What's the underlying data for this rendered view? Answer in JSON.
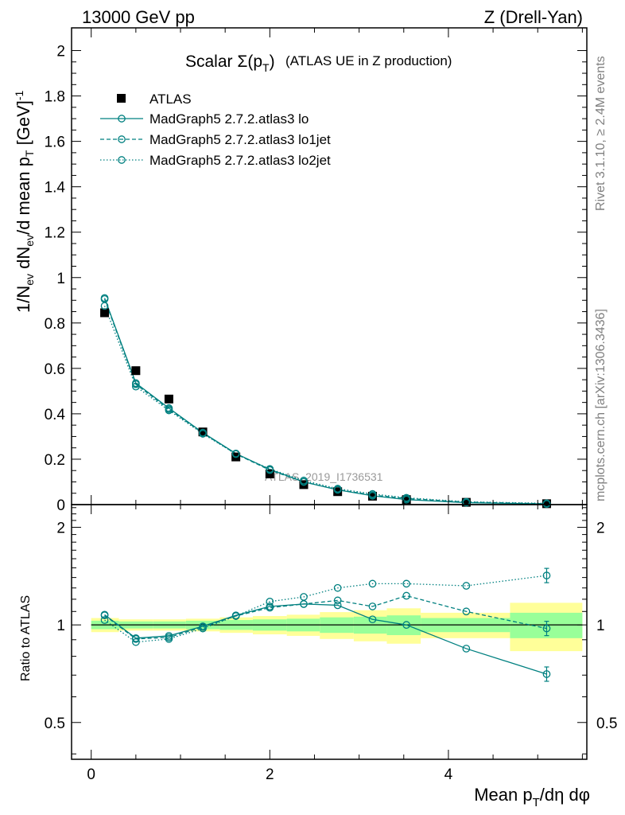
{
  "header": {
    "left": "13000 GeV pp",
    "right": "Z (Drell-Yan)"
  },
  "side": {
    "rivet": "Rivet 3.1.10, ≥ 2.4M events",
    "mcplots": "mcplots.cern.ch [arXiv:1306.3436]"
  },
  "colors": {
    "mc": "#008080",
    "data": "#000000",
    "band_inner": "#99ff99",
    "band_outer": "#ffff99"
  },
  "chart_data": [
    {
      "type": "scatter",
      "title": "Scalar Σ(p_T) (ATLAS UE in Z production)",
      "title_parts": {
        "pre": "Scalar ",
        "sigma": "Σ(p",
        "sub": "T",
        "post": ")",
        "rest": "(ATLAS UE in Z production)"
      },
      "ylabel": "1/N_ev dN_ev/d mean p_T [GeV]^-1",
      "ylabel_parts": {
        "a": "1/N",
        "ev1": "ev",
        "b": " dN",
        "ev2": "ev",
        "c": "/d mean p",
        "t": "T",
        "d": " [GeV]",
        "sup": "-1"
      },
      "xlabel": "",
      "watermark": "ATLAS_2019_I1736531",
      "xlim": [
        -0.22,
        5.55
      ],
      "ylim": [
        0,
        2.1
      ],
      "y_ticks": [
        {
          "v": 0,
          "label": "0"
        },
        {
          "v": 0.2,
          "label": "0.2"
        },
        {
          "v": 0.4,
          "label": "0.4"
        },
        {
          "v": 0.6,
          "label": "0.6"
        },
        {
          "v": 0.8,
          "label": "0.8"
        },
        {
          "v": 1,
          "label": "1"
        },
        {
          "v": 1.2,
          "label": "1.2"
        },
        {
          "v": 1.4,
          "label": "1.4"
        },
        {
          "v": 1.6,
          "label": "1.6"
        },
        {
          "v": 1.8,
          "label": "1.8"
        },
        {
          "v": 2,
          "label": "2"
        }
      ],
      "x": [
        0.15,
        0.5,
        0.87,
        1.25,
        1.62,
        2.0,
        2.38,
        2.76,
        3.15,
        3.53,
        4.2,
        5.1
      ],
      "series": [
        {
          "name": "ATLAS",
          "style": "data",
          "values": [
            0.845,
            0.59,
            0.465,
            0.32,
            0.21,
            0.135,
            0.088,
            0.057,
            0.037,
            0.022,
            0.01,
            0.004
          ]
        },
        {
          "name": "MadGraph5 2.7.2.atlas3 lo",
          "style": "solid",
          "values": [
            0.91,
            0.535,
            0.425,
            0.317,
            0.225,
            0.155,
            0.1,
            0.065,
            0.039,
            0.022,
            0.0085,
            0.0029
          ]
        },
        {
          "name": "MadGraph5 2.7.2.atlas3 lo1jet",
          "style": "dashed",
          "values": [
            0.905,
            0.53,
            0.42,
            0.315,
            0.223,
            0.152,
            0.1,
            0.066,
            0.042,
            0.027,
            0.011,
            0.0039
          ]
        },
        {
          "name": "MadGraph5 2.7.2.atlas3 lo2jet",
          "style": "dotted",
          "values": [
            0.875,
            0.52,
            0.415,
            0.312,
            0.223,
            0.157,
            0.106,
            0.07,
            0.047,
            0.03,
            0.0125,
            0.0057
          ]
        }
      ]
    },
    {
      "type": "scatter",
      "title": "",
      "ylabel": "Ratio to ATLAS",
      "xlabel": "Mean p_T/dη dφ",
      "xlabel_parts": {
        "a": "Mean p",
        "t": "T",
        "b": "/dη dφ"
      },
      "xlim": [
        -0.22,
        5.55
      ],
      "ylim": [
        0.385,
        2.35
      ],
      "log_y": true,
      "x_ticks": [
        {
          "v": 0,
          "label": "0"
        },
        {
          "v": 2,
          "label": "2"
        },
        {
          "v": 4,
          "label": "4"
        }
      ],
      "y_ticks": [
        {
          "v": 0.5,
          "label": "0.5"
        },
        {
          "v": 1,
          "label": "1"
        },
        {
          "v": 2,
          "label": "2"
        }
      ],
      "x": [
        0.15,
        0.5,
        0.87,
        1.25,
        1.62,
        2.0,
        2.38,
        2.76,
        3.15,
        3.53,
        4.2,
        5.1
      ],
      "bins": [
        {
          "lo": 0.0,
          "hi": 0.31,
          "inner": 0.03,
          "outer": 0.05
        },
        {
          "lo": 0.31,
          "hi": 0.69,
          "inner": 0.025,
          "outer": 0.04
        },
        {
          "lo": 0.69,
          "hi": 1.06,
          "inner": 0.025,
          "outer": 0.04
        },
        {
          "lo": 1.06,
          "hi": 1.44,
          "inner": 0.03,
          "outer": 0.045
        },
        {
          "lo": 1.44,
          "hi": 1.81,
          "inner": 0.035,
          "outer": 0.055
        },
        {
          "lo": 1.81,
          "hi": 2.19,
          "inner": 0.04,
          "outer": 0.065
        },
        {
          "lo": 2.19,
          "hi": 2.56,
          "inner": 0.045,
          "outer": 0.075
        },
        {
          "lo": 2.56,
          "hi": 2.94,
          "inner": 0.055,
          "outer": 0.095
        },
        {
          "lo": 2.94,
          "hi": 3.31,
          "inner": 0.06,
          "outer": 0.11
        },
        {
          "lo": 3.31,
          "hi": 3.69,
          "inner": 0.07,
          "outer": 0.125
        },
        {
          "lo": 3.69,
          "hi": 4.69,
          "inner": 0.05,
          "outer": 0.09
        },
        {
          "lo": 4.69,
          "hi": 5.5,
          "inner": 0.09,
          "outer": 0.17
        }
      ],
      "series": [
        {
          "name": "MadGraph5 2.7.2.atlas3 lo",
          "style": "solid",
          "values": [
            1.075,
            0.91,
            0.925,
            0.99,
            1.07,
            1.14,
            1.16,
            1.15,
            1.04,
            1.0,
            0.845,
            0.705
          ]
        },
        {
          "name": "MadGraph5 2.7.2.atlas3 lo1jet",
          "style": "dashed",
          "values": [
            1.07,
            0.905,
            0.915,
            0.985,
            1.065,
            1.13,
            1.16,
            1.19,
            1.14,
            1.23,
            1.1,
            0.975
          ]
        },
        {
          "name": "MadGraph5 2.7.2.atlas3 lo2jet",
          "style": "dotted",
          "values": [
            1.035,
            0.885,
            0.905,
            0.975,
            1.065,
            1.18,
            1.22,
            1.3,
            1.34,
            1.34,
            1.32,
            1.42
          ]
        }
      ]
    }
  ]
}
